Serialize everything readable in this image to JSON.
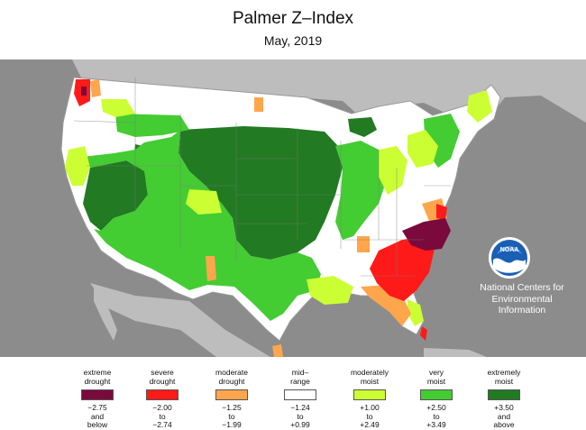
{
  "title": "Palmer Z–Index",
  "subtitle": "May, 2019",
  "colors": {
    "background_ocean": "#8c8c8c",
    "land_outside": "#bdbdbd",
    "extreme_drought": "#7a0a3c",
    "severe_drought": "#ff1a1a",
    "moderate_drought": "#ffa64d",
    "mid_range": "#ffffff",
    "moderately_moist": "#ccff33",
    "very_moist": "#44cc33",
    "extremely_moist": "#227a22"
  },
  "logo": {
    "name": "noaa-logo",
    "text": "NOAA"
  },
  "credit": [
    "National Centers for",
    "Environmental",
    "Information"
  ],
  "legend": [
    {
      "label": [
        "extreme",
        "drought"
      ],
      "color": "#7a0a3c",
      "range": [
        "−2.75",
        "and",
        "below"
      ]
    },
    {
      "label": [
        "severe",
        "drought"
      ],
      "color": "#ff1a1a",
      "range": [
        "−2.00",
        "to",
        "−2.74"
      ]
    },
    {
      "label": [
        "moderate",
        "drought"
      ],
      "color": "#ffa64d",
      "range": [
        "−1.25",
        "to",
        "−1.99"
      ]
    },
    {
      "label": [
        "mid–",
        "range"
      ],
      "color": "#ffffff",
      "range": [
        "−1.24",
        "to",
        "+0.99"
      ]
    },
    {
      "label": [
        "moderately",
        "moist"
      ],
      "color": "#ccff33",
      "range": [
        "+1.00",
        "to",
        "+2.49"
      ]
    },
    {
      "label": [
        "very",
        "moist"
      ],
      "color": "#44cc33",
      "range": [
        "+2.50",
        "to",
        "+3.49"
      ]
    },
    {
      "label": [
        "extremely",
        "moist"
      ],
      "color": "#227a22",
      "range": [
        "+3.50",
        "and",
        "above"
      ]
    }
  ]
}
